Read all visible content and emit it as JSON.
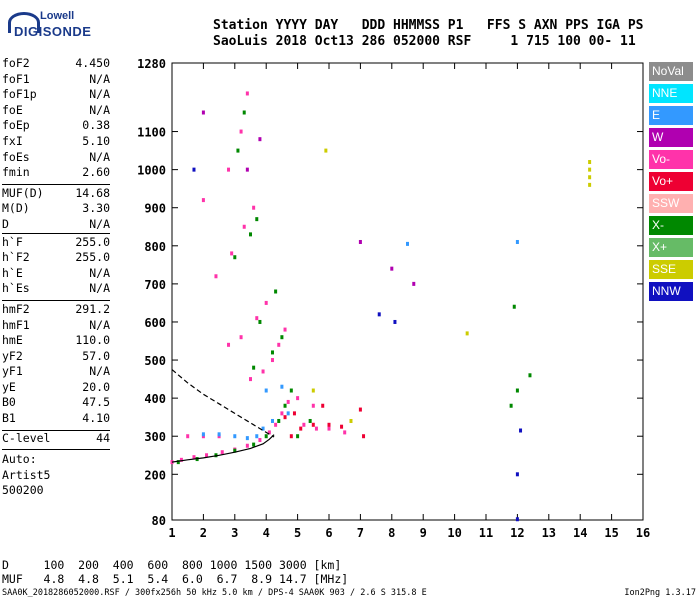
{
  "logo": {
    "line1": "Lowell",
    "line2": "DIGISONDE"
  },
  "header": {
    "line1": "Station YYYY DAY   DDD HHMMSS P1   FFS S AXN PPS IGA PS",
    "line2": "SaoLuis 2018 Oct13 286 052000 RSF     1 715 100 00- 11"
  },
  "params_group1": [
    {
      "label": "foF2",
      "value": "4.450"
    },
    {
      "label": "foF1",
      "value": "N/A"
    },
    {
      "label": "foF1p",
      "value": "N/A"
    },
    {
      "label": "foE",
      "value": "N/A"
    },
    {
      "label": "foEp",
      "value": "0.38"
    },
    {
      "label": "fxI",
      "value": "5.10"
    },
    {
      "label": "foEs",
      "value": "N/A"
    },
    {
      "label": "fmin",
      "value": "2.60"
    }
  ],
  "params_group2": [
    {
      "label": "MUF(D)",
      "value": "14.68"
    },
    {
      "label": "M(D)",
      "value": "3.30"
    },
    {
      "label": "D",
      "value": "N/A"
    }
  ],
  "params_group3": [
    {
      "label": "h`F",
      "value": "255.0"
    },
    {
      "label": "h`F2",
      "value": "255.0"
    },
    {
      "label": "h`E",
      "value": "N/A"
    },
    {
      "label": "h`Es",
      "value": "N/A"
    }
  ],
  "params_group4": [
    {
      "label": "hmF2",
      "value": "291.2"
    },
    {
      "label": "hmF1",
      "value": "N/A"
    },
    {
      "label": "hmE",
      "value": "110.0"
    },
    {
      "label": "yF2",
      "value": "57.0"
    },
    {
      "label": "yF1",
      "value": "N/A"
    },
    {
      "label": "yE",
      "value": "20.0"
    },
    {
      "label": "B0",
      "value": "47.5"
    },
    {
      "label": "B1",
      "value": "4.10"
    }
  ],
  "clevel": {
    "label": "C-level",
    "value": "44"
  },
  "auto": {
    "line1": "Auto:",
    "line2": "Artist5",
    "line3": "500200"
  },
  "legend": [
    {
      "label": "NoVal",
      "color": "#8c8c8c"
    },
    {
      "label": "NNE",
      "color": "#00e5ff"
    },
    {
      "label": "E",
      "color": "#3399ff"
    },
    {
      "label": "W",
      "color": "#b000b0"
    },
    {
      "label": "Vo-",
      "color": "#ff33aa"
    },
    {
      "label": "Vo+",
      "color": "#ee0033"
    },
    {
      "label": "SSW",
      "color": "#ffb0b0"
    },
    {
      "label": "X-",
      "color": "#008800"
    },
    {
      "label": "X+",
      "color": "#66bb66"
    },
    {
      "label": "SSE",
      "color": "#cccc00"
    },
    {
      "label": "NNW",
      "color": "#1010c0"
    }
  ],
  "muf_table": {
    "line1": "D     100  200  400  600  800 1000 1500 3000 [km]",
    "line2": "MUF   4.8  4.8  5.1  5.4  6.0  6.7  8.9 14.7 [MHz]"
  },
  "footer": "SAA0K_2018286052000.RSF / 300fx256h 50 kHz 5.0 km / DPS-4 SAA0K 903 / 2.6 S 315.8 E",
  "version": "Ion2Png 1.3.17",
  "chart_data": {
    "type": "scatter",
    "title": "",
    "xlabel": "",
    "ylabel": "",
    "xlim": [
      1,
      16
    ],
    "ylim": [
      80,
      1280
    ],
    "xticks": [
      1,
      2,
      3,
      4,
      5,
      6,
      7,
      8,
      9,
      10,
      11,
      12,
      13,
      14,
      15,
      16
    ],
    "yticks": [
      80,
      200,
      300,
      400,
      500,
      600,
      700,
      800,
      900,
      1000,
      1100,
      1280
    ],
    "grid": false,
    "series": [
      {
        "color": "#ff33aa",
        "points": [
          [
            1.0,
            232
          ],
          [
            1.3,
            238
          ],
          [
            1.7,
            245
          ],
          [
            2.1,
            250
          ],
          [
            2.6,
            258
          ],
          [
            3.0,
            265
          ],
          [
            3.4,
            275
          ],
          [
            3.8,
            290
          ],
          [
            4.1,
            310
          ],
          [
            4.3,
            330
          ],
          [
            4.5,
            360
          ],
          [
            4.7,
            390
          ],
          [
            1.5,
            300
          ],
          [
            2.0,
            300
          ],
          [
            2.5,
            300
          ],
          [
            3.5,
            450
          ],
          [
            3.9,
            470
          ],
          [
            4.2,
            500
          ],
          [
            4.4,
            540
          ],
          [
            4.6,
            580
          ],
          [
            2.8,
            540
          ],
          [
            3.2,
            560
          ],
          [
            3.7,
            610
          ],
          [
            4.0,
            650
          ],
          [
            2.4,
            720
          ],
          [
            2.9,
            780
          ],
          [
            3.3,
            850
          ],
          [
            3.6,
            900
          ],
          [
            2.0,
            920
          ],
          [
            2.8,
            1000
          ],
          [
            3.2,
            1100
          ],
          [
            3.4,
            1200
          ],
          [
            5.2,
            330
          ],
          [
            5.6,
            320
          ],
          [
            6.0,
            320
          ],
          [
            6.5,
            310
          ],
          [
            5.0,
            400
          ],
          [
            5.5,
            380
          ]
        ]
      },
      {
        "color": "#3399ff",
        "points": [
          [
            2.0,
            305
          ],
          [
            2.5,
            305
          ],
          [
            3.0,
            300
          ],
          [
            3.4,
            295
          ],
          [
            3.7,
            300
          ],
          [
            3.9,
            320
          ],
          [
            4.2,
            340
          ],
          [
            4.0,
            420
          ],
          [
            4.5,
            430
          ],
          [
            4.7,
            360
          ],
          [
            12.0,
            810
          ],
          [
            8.5,
            805
          ]
        ]
      },
      {
        "color": "#008800",
        "points": [
          [
            1.2,
            232
          ],
          [
            1.8,
            240
          ],
          [
            2.4,
            250
          ],
          [
            3.0,
            262
          ],
          [
            3.6,
            278
          ],
          [
            4.0,
            300
          ],
          [
            4.4,
            340
          ],
          [
            4.6,
            380
          ],
          [
            4.8,
            420
          ],
          [
            3.6,
            480
          ],
          [
            4.2,
            520
          ],
          [
            4.5,
            560
          ],
          [
            3.8,
            600
          ],
          [
            4.3,
            680
          ],
          [
            3.0,
            770
          ],
          [
            3.5,
            830
          ],
          [
            3.7,
            870
          ],
          [
            3.1,
            1050
          ],
          [
            3.3,
            1150
          ],
          [
            5.0,
            300
          ],
          [
            5.4,
            340
          ],
          [
            11.8,
            380
          ],
          [
            11.9,
            640
          ],
          [
            12.4,
            460
          ],
          [
            12.0,
            420
          ]
        ]
      },
      {
        "color": "#ee0033",
        "points": [
          [
            4.8,
            300
          ],
          [
            5.1,
            320
          ],
          [
            5.5,
            330
          ],
          [
            6.0,
            330
          ],
          [
            6.4,
            325
          ],
          [
            4.6,
            350
          ],
          [
            4.9,
            360
          ],
          [
            7.0,
            370
          ],
          [
            7.1,
            300
          ],
          [
            5.8,
            380
          ]
        ]
      },
      {
        "color": "#b000b0",
        "points": [
          [
            3.4,
            1000
          ],
          [
            3.8,
            1080
          ],
          [
            2.0,
            1150
          ],
          [
            8.0,
            740
          ],
          [
            8.7,
            700
          ],
          [
            7.0,
            810
          ]
        ]
      },
      {
        "color": "#cccc00",
        "points": [
          [
            14.3,
            1000
          ],
          [
            14.3,
            980
          ],
          [
            14.3,
            1020
          ],
          [
            14.3,
            960
          ],
          [
            5.9,
            1050
          ],
          [
            10.4,
            570
          ],
          [
            5.5,
            420
          ],
          [
            6.7,
            340
          ]
        ]
      },
      {
        "color": "#1010c0",
        "points": [
          [
            12.0,
            82
          ],
          [
            12.0,
            200
          ],
          [
            7.6,
            620
          ],
          [
            8.1,
            600
          ],
          [
            12.1,
            315
          ],
          [
            1.7,
            1000
          ]
        ]
      }
    ],
    "lines": [
      {
        "style": "solid",
        "points": [
          [
            1.0,
            232
          ],
          [
            1.5,
            238
          ],
          [
            2.0,
            243
          ],
          [
            2.5,
            250
          ],
          [
            3.0,
            258
          ],
          [
            3.5,
            268
          ],
          [
            3.9,
            280
          ],
          [
            4.1,
            292
          ],
          [
            4.25,
            304
          ]
        ]
      },
      {
        "style": "dashed",
        "points": [
          [
            1.0,
            475
          ],
          [
            1.5,
            440
          ],
          [
            2.0,
            410
          ],
          [
            2.5,
            385
          ],
          [
            3.0,
            360
          ],
          [
            3.5,
            335
          ],
          [
            4.0,
            310
          ],
          [
            4.25,
            298
          ]
        ]
      }
    ]
  }
}
